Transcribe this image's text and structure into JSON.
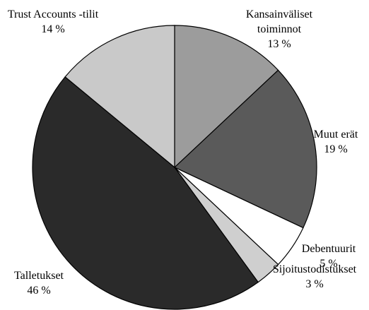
{
  "chart_data": {
    "type": "pie",
    "categories": [
      "Kansainväliset toiminnot",
      "Muut erät",
      "Debentuurit",
      "Sijoitustodistukset",
      "Talletukset",
      "Trust Accounts -tilit"
    ],
    "values": [
      13,
      19,
      5,
      3,
      46,
      14
    ],
    "value_labels": [
      "13 %",
      "19 %",
      "5 %",
      "3 %",
      "46 %",
      "14 %"
    ],
    "colors": [
      "#9c9c9c",
      "#5a5a5a",
      "#ffffff",
      "#cfcfcf",
      "#2a2a2a",
      "#c9c9c9"
    ]
  }
}
